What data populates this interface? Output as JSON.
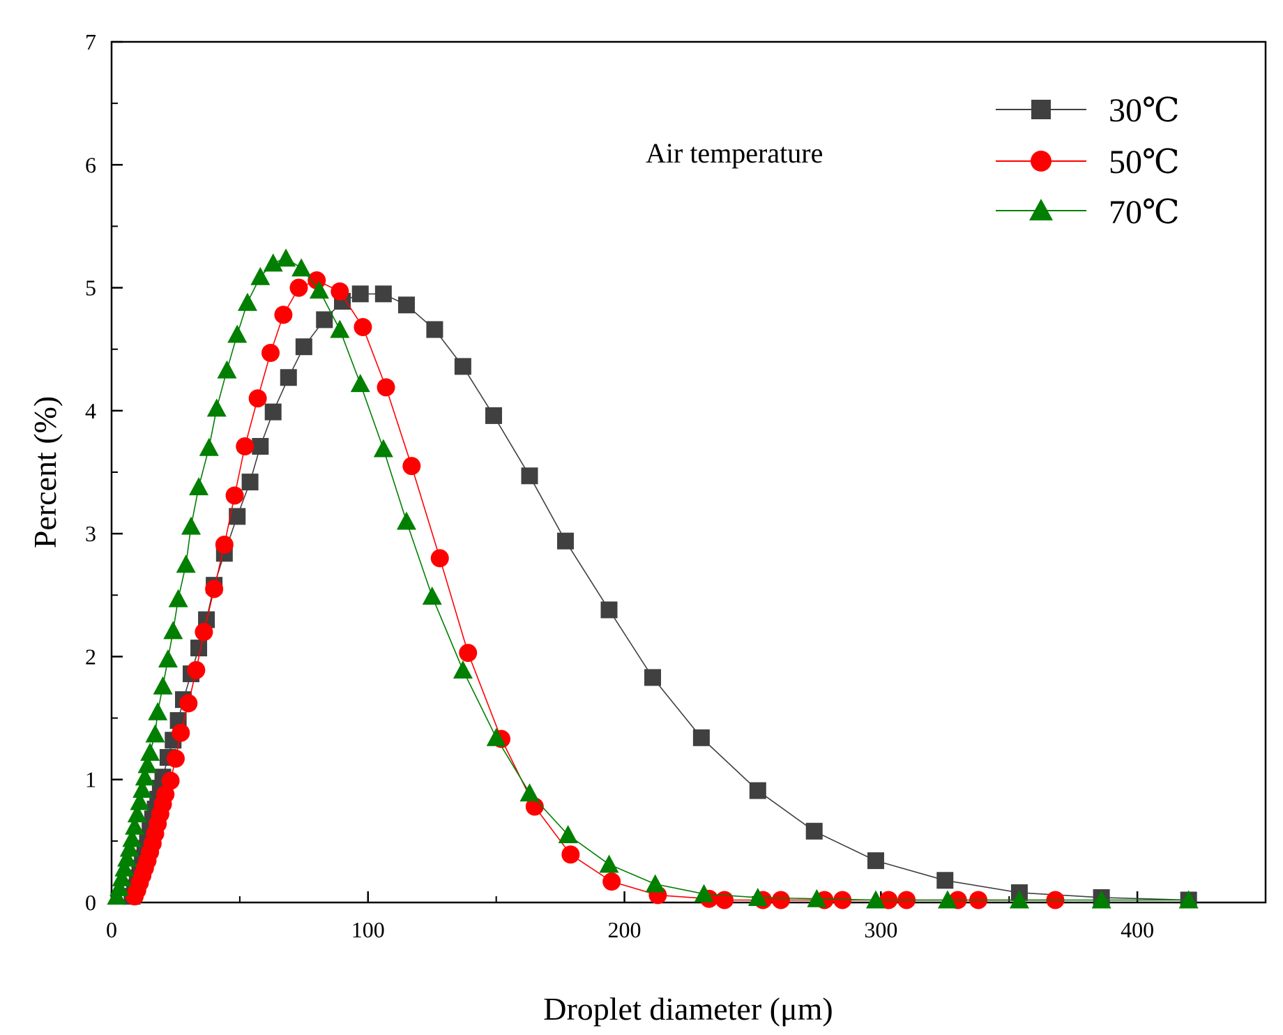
{
  "chart_data": {
    "type": "line",
    "title": "",
    "xlabel": "Droplet diameter (μm)",
    "ylabel": "Percent (%)",
    "xlim": [
      0,
      450
    ],
    "ylim": [
      0,
      7
    ],
    "x_ticks": [
      0,
      100,
      200,
      300,
      400
    ],
    "y_ticks": [
      0,
      1,
      2,
      3,
      4,
      5,
      6,
      7
    ],
    "x_tick_labels": [
      "0",
      "100",
      "200",
      "300",
      "400"
    ],
    "y_tick_labels": [
      "0",
      "1",
      "2",
      "3",
      "4",
      "5",
      "6",
      "7"
    ],
    "grid": false,
    "legend_position": "top-right",
    "annotation": "Air temperature",
    "series": [
      {
        "name": "30℃",
        "color": "#404040",
        "marker": "square",
        "x": [
          8,
          9,
          10,
          11,
          12,
          13,
          14,
          15,
          16,
          17,
          18,
          19,
          20,
          22,
          24,
          26,
          28,
          31,
          34,
          37,
          40,
          44,
          49,
          54,
          58,
          63,
          69,
          75,
          83,
          90,
          97,
          106,
          115,
          126,
          137,
          149,
          163,
          177,
          194,
          211,
          230,
          252,
          274,
          298,
          325,
          354,
          386,
          420
        ],
        "y": [
          0.05,
          0.12,
          0.2,
          0.28,
          0.36,
          0.44,
          0.52,
          0.6,
          0.68,
          0.76,
          0.84,
          0.93,
          1.02,
          1.18,
          1.32,
          1.48,
          1.65,
          1.86,
          2.07,
          2.3,
          2.58,
          2.84,
          3.14,
          3.42,
          3.71,
          3.99,
          4.27,
          4.52,
          4.74,
          4.89,
          4.95,
          4.95,
          4.86,
          4.66,
          4.36,
          3.96,
          3.47,
          2.94,
          2.38,
          1.83,
          1.34,
          0.91,
          0.58,
          0.34,
          0.18,
          0.08,
          0.04,
          0.02
        ]
      },
      {
        "name": "50℃",
        "color": "#ff0000",
        "marker": "circle",
        "x": [
          9,
          10,
          11,
          12,
          13,
          14,
          15,
          16,
          17,
          18,
          19,
          20,
          21,
          23,
          25,
          27,
          30,
          33,
          36,
          40,
          44,
          48,
          52,
          57,
          62,
          67,
          73,
          80,
          89,
          98,
          107,
          117,
          128,
          139,
          152,
          165,
          179,
          195,
          213,
          233,
          239,
          254,
          261,
          278,
          285,
          303,
          310,
          330,
          338,
          368
        ],
        "y": [
          0.05,
          0.1,
          0.16,
          0.22,
          0.28,
          0.34,
          0.41,
          0.48,
          0.56,
          0.64,
          0.72,
          0.8,
          0.88,
          0.99,
          1.17,
          1.38,
          1.62,
          1.89,
          2.2,
          2.55,
          2.91,
          3.31,
          3.71,
          4.1,
          4.47,
          4.78,
          5.0,
          5.06,
          4.97,
          4.68,
          4.19,
          3.55,
          2.8,
          2.03,
          1.33,
          0.78,
          0.39,
          0.17,
          0.06,
          0.03,
          0.02,
          0.02,
          0.02,
          0.02,
          0.02,
          0.02,
          0.02,
          0.02,
          0.02,
          0.02
        ]
      },
      {
        "name": "70℃",
        "color": "#007f00",
        "marker": "triangle",
        "x": [
          2,
          3,
          4,
          5,
          6,
          7,
          8,
          9,
          10,
          11,
          12,
          13,
          14,
          15,
          17,
          18,
          20,
          22,
          24,
          26,
          29,
          31,
          34,
          38,
          41,
          45,
          49,
          53,
          58,
          63,
          68,
          74,
          81,
          89,
          97,
          106,
          115,
          125,
          137,
          150,
          163,
          178,
          194,
          212,
          231,
          252,
          275,
          298,
          326,
          354,
          386,
          420
        ],
        "y": [
          0.05,
          0.12,
          0.2,
          0.28,
          0.36,
          0.44,
          0.52,
          0.62,
          0.72,
          0.82,
          0.92,
          1.02,
          1.12,
          1.22,
          1.37,
          1.55,
          1.76,
          1.98,
          2.21,
          2.47,
          2.75,
          3.06,
          3.38,
          3.7,
          4.02,
          4.33,
          4.62,
          4.88,
          5.09,
          5.2,
          5.24,
          5.16,
          4.98,
          4.66,
          4.22,
          3.69,
          3.1,
          2.49,
          1.89,
          1.34,
          0.89,
          0.55,
          0.31,
          0.15,
          0.07,
          0.04,
          0.03,
          0.02,
          0.02,
          0.02,
          0.02,
          0.02
        ]
      }
    ]
  }
}
